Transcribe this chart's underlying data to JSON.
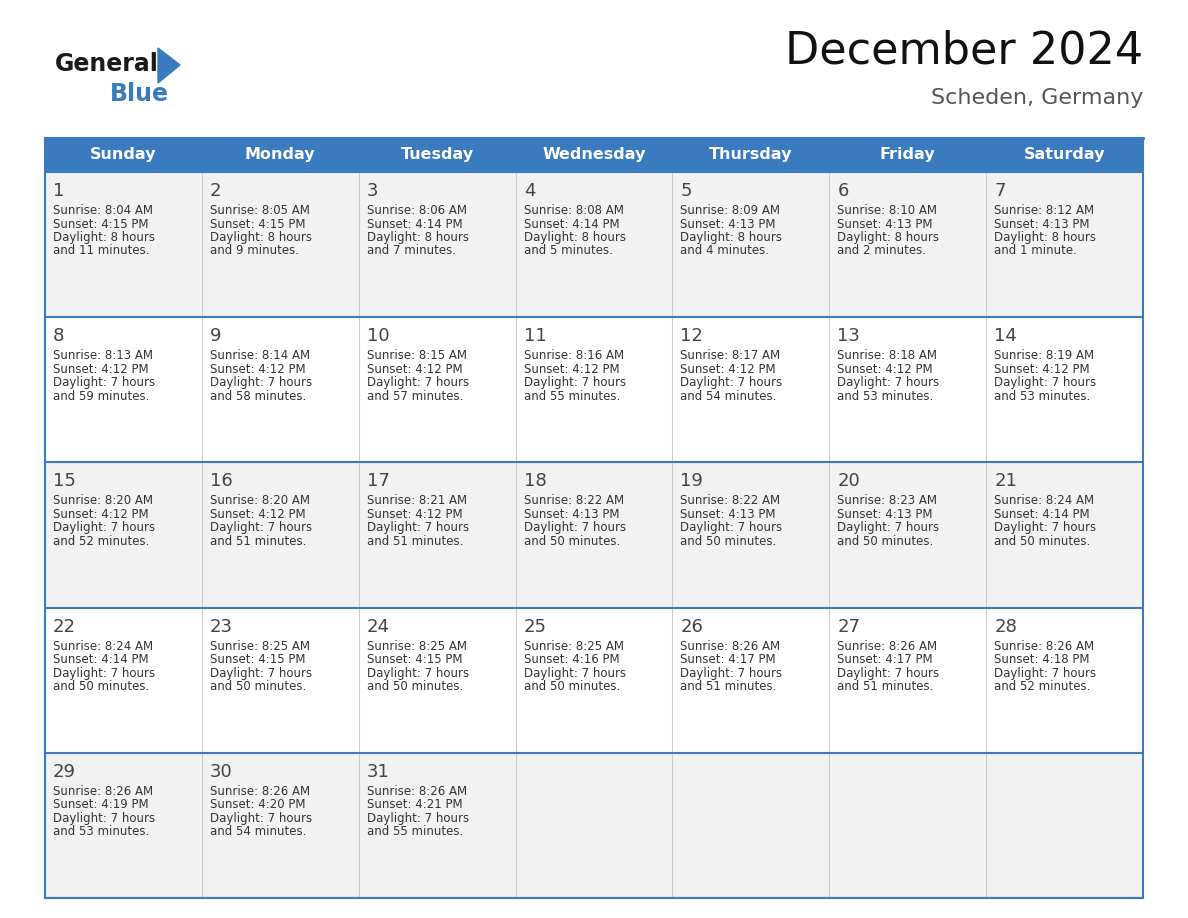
{
  "title": "December 2024",
  "subtitle": "Scheden, Germany",
  "header_color": "#3a7abf",
  "header_text_color": "#ffffff",
  "cell_bg_even": "#f2f2f2",
  "cell_bg_odd": "#ffffff",
  "border_color": "#3a7abf",
  "sep_color": "#cccccc",
  "text_color": "#333333",
  "day_number_color": "#444444",
  "day_headers": [
    "Sunday",
    "Monday",
    "Tuesday",
    "Wednesday",
    "Thursday",
    "Friday",
    "Saturday"
  ],
  "weeks": [
    [
      {
        "day": 1,
        "sunrise": "8:04 AM",
        "sunset": "4:15 PM",
        "daylight_h": "8 hours",
        "daylight_m": "and 11 minutes."
      },
      {
        "day": 2,
        "sunrise": "8:05 AM",
        "sunset": "4:15 PM",
        "daylight_h": "8 hours",
        "daylight_m": "and 9 minutes."
      },
      {
        "day": 3,
        "sunrise": "8:06 AM",
        "sunset": "4:14 PM",
        "daylight_h": "8 hours",
        "daylight_m": "and 7 minutes."
      },
      {
        "day": 4,
        "sunrise": "8:08 AM",
        "sunset": "4:14 PM",
        "daylight_h": "8 hours",
        "daylight_m": "and 5 minutes."
      },
      {
        "day": 5,
        "sunrise": "8:09 AM",
        "sunset": "4:13 PM",
        "daylight_h": "8 hours",
        "daylight_m": "and 4 minutes."
      },
      {
        "day": 6,
        "sunrise": "8:10 AM",
        "sunset": "4:13 PM",
        "daylight_h": "8 hours",
        "daylight_m": "and 2 minutes."
      },
      {
        "day": 7,
        "sunrise": "8:12 AM",
        "sunset": "4:13 PM",
        "daylight_h": "8 hours",
        "daylight_m": "and 1 minute."
      }
    ],
    [
      {
        "day": 8,
        "sunrise": "8:13 AM",
        "sunset": "4:12 PM",
        "daylight_h": "7 hours",
        "daylight_m": "and 59 minutes."
      },
      {
        "day": 9,
        "sunrise": "8:14 AM",
        "sunset": "4:12 PM",
        "daylight_h": "7 hours",
        "daylight_m": "and 58 minutes."
      },
      {
        "day": 10,
        "sunrise": "8:15 AM",
        "sunset": "4:12 PM",
        "daylight_h": "7 hours",
        "daylight_m": "and 57 minutes."
      },
      {
        "day": 11,
        "sunrise": "8:16 AM",
        "sunset": "4:12 PM",
        "daylight_h": "7 hours",
        "daylight_m": "and 55 minutes."
      },
      {
        "day": 12,
        "sunrise": "8:17 AM",
        "sunset": "4:12 PM",
        "daylight_h": "7 hours",
        "daylight_m": "and 54 minutes."
      },
      {
        "day": 13,
        "sunrise": "8:18 AM",
        "sunset": "4:12 PM",
        "daylight_h": "7 hours",
        "daylight_m": "and 53 minutes."
      },
      {
        "day": 14,
        "sunrise": "8:19 AM",
        "sunset": "4:12 PM",
        "daylight_h": "7 hours",
        "daylight_m": "and 53 minutes."
      }
    ],
    [
      {
        "day": 15,
        "sunrise": "8:20 AM",
        "sunset": "4:12 PM",
        "daylight_h": "7 hours",
        "daylight_m": "and 52 minutes."
      },
      {
        "day": 16,
        "sunrise": "8:20 AM",
        "sunset": "4:12 PM",
        "daylight_h": "7 hours",
        "daylight_m": "and 51 minutes."
      },
      {
        "day": 17,
        "sunrise": "8:21 AM",
        "sunset": "4:12 PM",
        "daylight_h": "7 hours",
        "daylight_m": "and 51 minutes."
      },
      {
        "day": 18,
        "sunrise": "8:22 AM",
        "sunset": "4:13 PM",
        "daylight_h": "7 hours",
        "daylight_m": "and 50 minutes."
      },
      {
        "day": 19,
        "sunrise": "8:22 AM",
        "sunset": "4:13 PM",
        "daylight_h": "7 hours",
        "daylight_m": "and 50 minutes."
      },
      {
        "day": 20,
        "sunrise": "8:23 AM",
        "sunset": "4:13 PM",
        "daylight_h": "7 hours",
        "daylight_m": "and 50 minutes."
      },
      {
        "day": 21,
        "sunrise": "8:24 AM",
        "sunset": "4:14 PM",
        "daylight_h": "7 hours",
        "daylight_m": "and 50 minutes."
      }
    ],
    [
      {
        "day": 22,
        "sunrise": "8:24 AM",
        "sunset": "4:14 PM",
        "daylight_h": "7 hours",
        "daylight_m": "and 50 minutes."
      },
      {
        "day": 23,
        "sunrise": "8:25 AM",
        "sunset": "4:15 PM",
        "daylight_h": "7 hours",
        "daylight_m": "and 50 minutes."
      },
      {
        "day": 24,
        "sunrise": "8:25 AM",
        "sunset": "4:15 PM",
        "daylight_h": "7 hours",
        "daylight_m": "and 50 minutes."
      },
      {
        "day": 25,
        "sunrise": "8:25 AM",
        "sunset": "4:16 PM",
        "daylight_h": "7 hours",
        "daylight_m": "and 50 minutes."
      },
      {
        "day": 26,
        "sunrise": "8:26 AM",
        "sunset": "4:17 PM",
        "daylight_h": "7 hours",
        "daylight_m": "and 51 minutes."
      },
      {
        "day": 27,
        "sunrise": "8:26 AM",
        "sunset": "4:17 PM",
        "daylight_h": "7 hours",
        "daylight_m": "and 51 minutes."
      },
      {
        "day": 28,
        "sunrise": "8:26 AM",
        "sunset": "4:18 PM",
        "daylight_h": "7 hours",
        "daylight_m": "and 52 minutes."
      }
    ],
    [
      {
        "day": 29,
        "sunrise": "8:26 AM",
        "sunset": "4:19 PM",
        "daylight_h": "7 hours",
        "daylight_m": "and 53 minutes."
      },
      {
        "day": 30,
        "sunrise": "8:26 AM",
        "sunset": "4:20 PM",
        "daylight_h": "7 hours",
        "daylight_m": "and 54 minutes."
      },
      {
        "day": 31,
        "sunrise": "8:26 AM",
        "sunset": "4:21 PM",
        "daylight_h": "7 hours",
        "daylight_m": "and 55 minutes."
      },
      null,
      null,
      null,
      null
    ]
  ],
  "logo_general_color": "#1a1a1a",
  "logo_blue_color": "#3a7abf",
  "fig_bg": "#ffffff",
  "title_fontsize": 32,
  "subtitle_fontsize": 16,
  "header_fontsize": 11.5,
  "day_num_fontsize": 13,
  "cell_text_fontsize": 8.5
}
